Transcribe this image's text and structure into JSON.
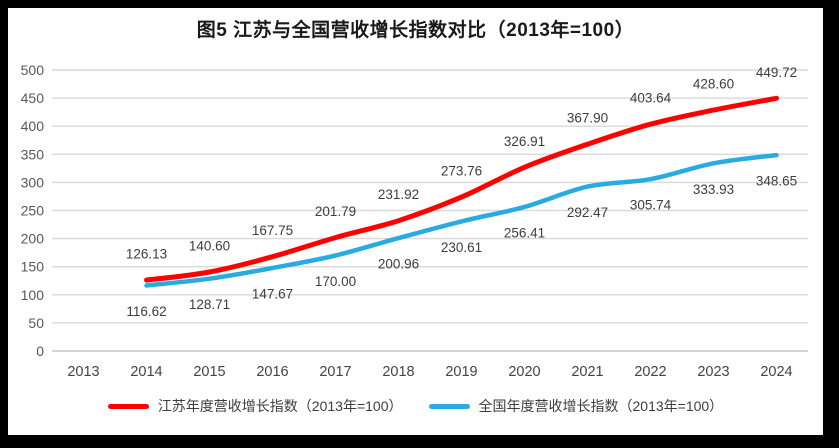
{
  "frame": {
    "background": "#000000",
    "panel_background": "#ffffff"
  },
  "chart_data": {
    "type": "line",
    "title": "图5  江苏与全国营收增长指数对比（2013年=100）",
    "categories": [
      "2013",
      "2014",
      "2015",
      "2016",
      "2017",
      "2018",
      "2019",
      "2020",
      "2021",
      "2022",
      "2023",
      "2024"
    ],
    "series": [
      {
        "name": "江苏年度营收增长指数（2013年=100）",
        "color": "#FF0000",
        "label_position": "above",
        "values": [
          null,
          126.13,
          140.6,
          167.75,
          201.79,
          231.92,
          273.76,
          326.91,
          367.9,
          403.64,
          428.6,
          449.72
        ]
      },
      {
        "name": "全国年度营收增长指数（2013年=100）",
        "color": "#29ABE2",
        "label_position": "below",
        "values": [
          null,
          116.62,
          128.71,
          147.67,
          170.0,
          200.96,
          230.61,
          256.41,
          292.47,
          305.74,
          333.93,
          348.65
        ]
      }
    ],
    "y_axis": {
      "min": 0,
      "max": 500,
      "step": 50,
      "ticks": [
        0,
        50,
        100,
        150,
        200,
        250,
        300,
        350,
        400,
        450,
        500
      ]
    },
    "xlabel": "",
    "ylabel": "",
    "grid": true,
    "legend_position": "bottom",
    "data_label_decimals": 2
  },
  "style_colors": {
    "gridline": "#D9D9D9",
    "baseline": "#C6C6C6",
    "y_tick_text": "#595959",
    "x_tick_text": "#444444",
    "data_label_text": "#3d3d3d"
  }
}
